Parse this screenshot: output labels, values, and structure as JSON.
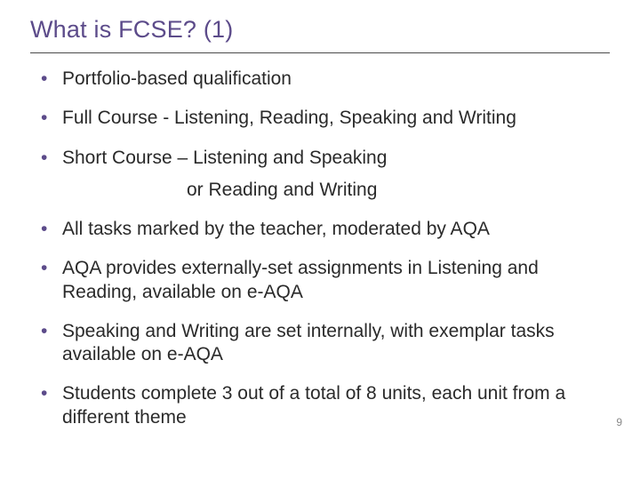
{
  "slide": {
    "title": "What is FCSE? (1)",
    "title_color": "#5c4b8a",
    "divider_color": "#4a4a4a",
    "bullet_color": "#5c4b8a",
    "text_color": "#2a2a2a",
    "background_color": "#ffffff",
    "title_fontsize": 27,
    "body_fontsize": 21,
    "bullets": [
      "Portfolio-based qualification",
      "Full Course - Listening, Reading, Speaking and Writing",
      "Short Course – Listening and Speaking",
      "All tasks marked by the teacher, moderated by AQA",
      "AQA provides externally-set assignments in Listening and Reading, available on e-AQA",
      "Speaking and Writing are set internally, with exemplar tasks available on e-AQA",
      "Students complete 3 out of a total of 8 units, each unit from a different theme"
    ],
    "sub_line_after_index": 2,
    "sub_line_text": "or Reading and Writing",
    "page_number": "9",
    "page_number_color": "#888888"
  }
}
